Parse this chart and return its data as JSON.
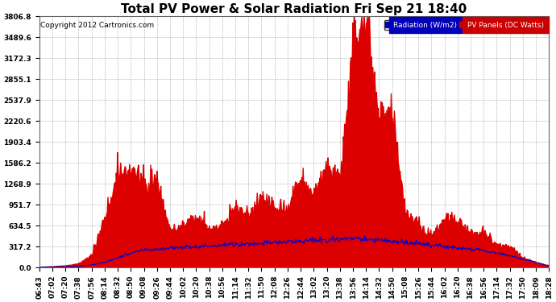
{
  "title": "Total PV Power & Solar Radiation Fri Sep 21 18:40",
  "copyright": "Copyright 2012 Cartronics.com",
  "legend_labels": [
    "Radiation (W/m2)",
    "PV Panels (DC Watts)"
  ],
  "legend_bg_colors": [
    "#0000bb",
    "#cc0000"
  ],
  "yticks": [
    0.0,
    317.2,
    634.5,
    951.7,
    1268.9,
    1586.2,
    1903.4,
    2220.6,
    2537.9,
    2855.1,
    3172.3,
    3489.6,
    3806.8
  ],
  "ymax": 3806.8,
  "background_color": "#ffffff",
  "plot_bg_color": "#ffffff",
  "grid_color": "#aaaaaa",
  "red_fill_color": "#dd0000",
  "blue_line_color": "#0000cc",
  "xtick_labels": [
    "06:43",
    "07:02",
    "07:20",
    "07:38",
    "07:56",
    "08:14",
    "08:32",
    "08:50",
    "09:08",
    "09:26",
    "09:44",
    "10:02",
    "10:20",
    "10:38",
    "10:56",
    "11:14",
    "11:32",
    "11:50",
    "12:08",
    "12:26",
    "12:44",
    "13:02",
    "13:20",
    "13:38",
    "13:56",
    "14:14",
    "14:32",
    "14:50",
    "15:08",
    "15:26",
    "15:44",
    "16:02",
    "16:20",
    "16:38",
    "16:56",
    "17:14",
    "17:32",
    "17:50",
    "18:09",
    "18:28"
  ],
  "title_fontsize": 11,
  "axis_fontsize": 6.5,
  "copyright_fontsize": 6.5
}
